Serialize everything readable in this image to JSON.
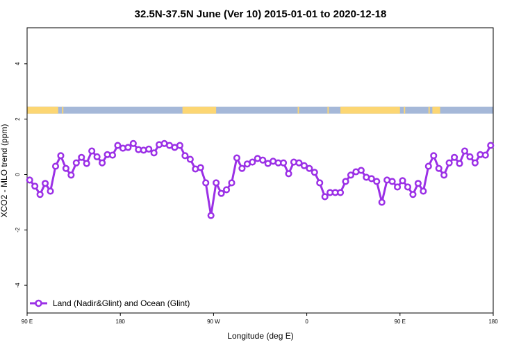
{
  "chart_data": {
    "type": "line",
    "title": "32.5N-37.5N June (Ver 10)   2015-01-01 to 2020-12-18",
    "xlabel": "Longitude (deg E)",
    "ylabel": "XCO2 - MLO trend (ppm)",
    "xlim": [
      90,
      450
    ],
    "ylim": [
      -5,
      5.3
    ],
    "x_ticks": [
      {
        "value": 90,
        "label": "90 E"
      },
      {
        "value": 162,
        "label": "180"
      },
      {
        "value": 234,
        "label": "90 W"
      },
      {
        "value": 306,
        "label": "0"
      },
      {
        "value": 378,
        "label": "90 E"
      },
      {
        "value": 450,
        "label": "180"
      }
    ],
    "y_ticks": [
      {
        "value": -4,
        "label": "-4"
      },
      {
        "value": -2,
        "label": "-2"
      },
      {
        "value": 0,
        "label": "0"
      },
      {
        "value": 2,
        "label": "2"
      },
      {
        "value": 4,
        "label": "4"
      }
    ],
    "legend": {
      "position": "bottom-left",
      "entries": [
        "Land (Nadir&Glint) and Ocean (Glint)"
      ]
    },
    "series": [
      {
        "name": "Land (Nadir&Glint) and Ocean (Glint)",
        "color": "#9b30e6",
        "x": [
          92,
          96,
          100,
          104,
          108,
          112,
          116,
          120,
          124,
          128,
          132,
          136,
          140,
          144,
          148,
          152,
          156,
          160,
          164,
          168,
          172,
          176,
          180,
          184,
          188,
          192,
          196,
          200,
          204,
          208,
          212,
          216,
          220,
          224,
          228,
          232,
          236,
          240,
          244,
          248,
          252,
          256,
          260,
          264,
          268,
          272,
          276,
          280,
          284,
          288,
          292,
          296,
          300,
          304,
          308,
          312,
          316,
          320,
          324,
          328,
          332,
          336,
          340,
          344,
          348,
          352,
          356,
          360,
          364,
          368,
          372,
          376,
          380,
          384,
          388,
          392,
          396,
          400,
          404,
          408,
          412,
          416,
          420,
          424,
          428,
          432,
          436,
          440,
          444,
          448
        ],
        "y": [
          -0.2,
          -0.42,
          -0.72,
          -0.32,
          -0.6,
          0.3,
          0.68,
          0.22,
          -0.02,
          0.42,
          0.62,
          0.4,
          0.85,
          0.64,
          0.42,
          0.72,
          0.7,
          1.05,
          0.95,
          0.98,
          1.12,
          0.9,
          0.88,
          0.92,
          0.78,
          1.08,
          1.12,
          1.05,
          0.98,
          1.05,
          0.68,
          0.55,
          0.2,
          0.25,
          -0.3,
          -1.48,
          -0.3,
          -0.68,
          -0.55,
          -0.3,
          0.6,
          0.22,
          0.38,
          0.45,
          0.58,
          0.52,
          0.4,
          0.48,
          0.42,
          0.42,
          0.03,
          0.45,
          0.42,
          0.32,
          0.22,
          0.08,
          -0.3,
          -0.8,
          -0.65,
          -0.65,
          -0.65,
          -0.25,
          -0.02,
          0.1,
          0.15,
          -0.1,
          -0.15,
          -0.25,
          -1.0,
          -0.2,
          -0.25,
          -0.45,
          -0.22,
          -0.45,
          -0.72,
          -0.32,
          -0.6,
          0.3,
          0.68,
          0.22,
          -0.02,
          0.42,
          0.62,
          0.4,
          0.85,
          0.64,
          0.42,
          0.72,
          0.7,
          1.05
        ]
      }
    ],
    "surface_band": {
      "y_range": [
        2.2,
        2.45
      ],
      "land_color": "#fcd673",
      "ocean_color": "#a5b8d8",
      "land_segments": [
        [
          90,
          114
        ],
        [
          117,
          118
        ],
        [
          210,
          236
        ],
        [
          299,
          300
        ],
        [
          322,
          323
        ],
        [
          332,
          378
        ],
        [
          381,
          382
        ],
        [
          400,
          401
        ],
        [
          403,
          409
        ]
      ]
    },
    "grid": false
  }
}
